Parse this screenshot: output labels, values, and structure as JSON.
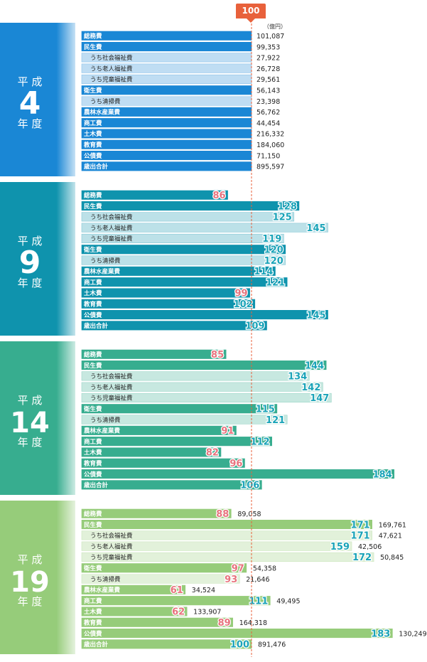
{
  "reference_marker": "100",
  "unit": "（億円）",
  "colors": {
    "panel_1": "#1a87d5",
    "panel_2": "#0f93ad",
    "panel_3": "#37ad8f",
    "panel_4": "#96cc7a",
    "index_above": "#19a3b8",
    "index_below": "#e8737e",
    "reference_line": "#e8613b"
  },
  "chart_data": {
    "type": "bar",
    "categories": [
      "総務費",
      "民生費",
      "うち社会福祉費",
      "うち老人福祉費",
      "うち児童福祉費",
      "衛生費",
      "うち清掃費",
      "農林水産業費",
      "商工費",
      "土木費",
      "教育費",
      "公債費",
      "歳出合計"
    ],
    "panels": [
      {
        "label_top": "平 成",
        "label_number": "4",
        "label_bottom": "年 度",
        "index": [
          100,
          100,
          100,
          100,
          100,
          100,
          100,
          100,
          100,
          100,
          100,
          100,
          100
        ],
        "values": [
          "101,087",
          "99,353",
          "27,922",
          "26,728",
          "29,561",
          "56,143",
          "23,398",
          "56,762",
          "44,454",
          "216,332",
          "184,060",
          "71,150",
          "895,597"
        ]
      },
      {
        "label_top": "平 成",
        "label_number": "9",
        "label_bottom": "年 度",
        "index": [
          86,
          128,
          125,
          145,
          119,
          120,
          120,
          114,
          121,
          99,
          102,
          145,
          109
        ]
      },
      {
        "label_top": "平 成",
        "label_number": "14",
        "label_bottom": "年 度",
        "index": [
          85,
          144,
          134,
          142,
          147,
          115,
          121,
          91,
          112,
          82,
          96,
          184,
          106
        ]
      },
      {
        "label_top": "平 成",
        "label_number": "19",
        "label_bottom": "年 度",
        "index": [
          88,
          171,
          171,
          159,
          172,
          97,
          93,
          61,
          111,
          62,
          89,
          183,
          100
        ],
        "values": [
          "89,058",
          "169,761",
          "47,621",
          "42,506",
          "50,845",
          "54,358",
          "21,646",
          "34,524",
          "49,495",
          "133,907",
          "164,318",
          "130,249",
          "891,476"
        ]
      }
    ],
    "reference_value": 100,
    "xlim": [
      0,
      190
    ]
  }
}
